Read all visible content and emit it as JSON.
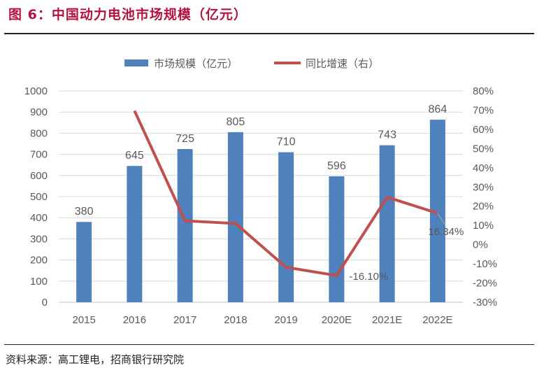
{
  "title": "图 6：中国动力电池市场规模（亿元）",
  "source": "资料来源：高工锂电，招商银行研究院",
  "chart_data": {
    "type": "bar+line",
    "categories": [
      "2015",
      "2016",
      "2017",
      "2018",
      "2019",
      "2020E",
      "2021E",
      "2022E"
    ],
    "series": [
      {
        "name": "市场规模（亿元）",
        "type": "bar",
        "axis": "left",
        "color": "#4f81bd",
        "values": [
          380,
          645,
          725,
          805,
          710,
          596,
          743,
          864
        ],
        "labels": [
          "380",
          "645",
          "725",
          "805",
          "710",
          "596",
          "743",
          "864"
        ]
      },
      {
        "name": "同比增速（右）",
        "type": "line",
        "axis": "right",
        "color": "#c0504d",
        "values": [
          null,
          69.7,
          12.4,
          11.0,
          -11.8,
          -16.1,
          24.7,
          16.34
        ],
        "labels": {
          "5": "-16.10%",
          "7": "16.34%"
        }
      }
    ],
    "ylim": [
      0,
      1000
    ],
    "yticks": [
      "0",
      "100",
      "200",
      "300",
      "400",
      "500",
      "600",
      "700",
      "800",
      "900",
      "1000"
    ],
    "y2lim": [
      -30,
      80
    ],
    "y2ticks": [
      "-30%",
      "-20%",
      "-10%",
      "0%",
      "10%",
      "20%",
      "30%",
      "40%",
      "50%",
      "60%",
      "70%",
      "80%"
    ],
    "grid": true,
    "legend": "top"
  }
}
